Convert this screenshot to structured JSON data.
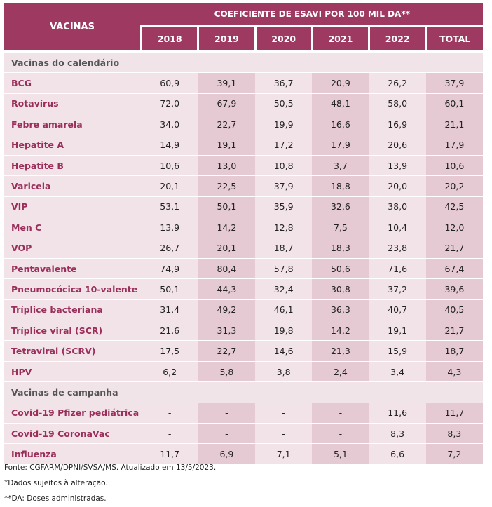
{
  "table": {
    "header": {
      "vaccines_label": "VACINAS",
      "group_label": "COEFICIENTE DE ESAVI POR 100 MIL DA**",
      "years": [
        "2018",
        "2019",
        "2020",
        "2021",
        "2022",
        "TOTAL"
      ]
    },
    "sections": [
      {
        "title": "Vacinas do calendário",
        "rows": [
          {
            "name": "BCG",
            "values": [
              "60,9",
              "39,1",
              "36,7",
              "20,9",
              "26,2",
              "37,9"
            ]
          },
          {
            "name": "Rotavírus",
            "values": [
              "72,0",
              "67,9",
              "50,5",
              "48,1",
              "58,0",
              "60,1"
            ]
          },
          {
            "name": "Febre amarela",
            "values": [
              "34,0",
              "22,7",
              "19,9",
              "16,6",
              "16,9",
              "21,1"
            ]
          },
          {
            "name": "Hepatite A",
            "values": [
              "14,9",
              "19,1",
              "17,2",
              "17,9",
              "20,6",
              "17,9"
            ]
          },
          {
            "name": "Hepatite B",
            "values": [
              "10,6",
              "13,0",
              "10,8",
              "3,7",
              "13,9",
              "10,6"
            ]
          },
          {
            "name": "Varicela",
            "values": [
              "20,1",
              "22,5",
              "37,9",
              "18,8",
              "20,0",
              "20,2"
            ]
          },
          {
            "name": "VIP",
            "values": [
              "53,1",
              "50,1",
              "35,9",
              "32,6",
              "38,0",
              "42,5"
            ]
          },
          {
            "name": "Men C",
            "values": [
              "13,9",
              "14,2",
              "12,8",
              "7,5",
              "10,4",
              "12,0"
            ]
          },
          {
            "name": "VOP",
            "values": [
              "26,7",
              "20,1",
              "18,7",
              "18,3",
              "23,8",
              "21,7"
            ]
          },
          {
            "name": "Pentavalente",
            "values": [
              "74,9",
              "80,4",
              "57,8",
              "50,6",
              "71,6",
              "67,4"
            ]
          },
          {
            "name": "Pneumocócica 10-valente",
            "values": [
              "50,1",
              "44,3",
              "32,4",
              "30,8",
              "37,2",
              "39,6"
            ]
          },
          {
            "name": "Tríplice bacteriana",
            "values": [
              "31,4",
              "49,2",
              "46,1",
              "36,3",
              "40,7",
              "40,5"
            ]
          },
          {
            "name": "Tríplice viral (SCR)",
            "values": [
              "21,6",
              "31,3",
              "19,8",
              "14,2",
              "19,1",
              "21,7"
            ]
          },
          {
            "name": "Tetraviral (SCRV)",
            "values": [
              "17,5",
              "22,7",
              "14,6",
              "21,3",
              "15,9",
              "18,7"
            ]
          },
          {
            "name": "HPV",
            "values": [
              "6,2",
              "5,8",
              "3,8",
              "2,4",
              "3,4",
              "4,3"
            ]
          }
        ]
      },
      {
        "title": "Vacinas de campanha",
        "rows": [
          {
            "name": "Covid-19 Pfizer pediátrica",
            "values": [
              "-",
              "-",
              "-",
              "-",
              "11,6",
              "11,7"
            ]
          },
          {
            "name": "Covid-19 CoronaVac",
            "values": [
              "-",
              "-",
              "-",
              "-",
              "8,3",
              "8,3"
            ]
          },
          {
            "name": "Influenza",
            "values": [
              "11,7",
              "6,9",
              "7,1",
              "5,1",
              "6,6",
              "7,2"
            ]
          }
        ]
      }
    ]
  },
  "notes": {
    "source": "Fonte: CGFARM/DPNI/SVSA/MS. Atualizado em 13/5/2023.",
    "note1": "*Dados sujeitos à alteração.",
    "note2": "**DA: Doses administradas."
  },
  "colors": {
    "header_bg": "#9e3a62",
    "name_text": "#9b2f5a",
    "row_light": "#f2e3e8",
    "row_dark": "#e5cad3"
  }
}
